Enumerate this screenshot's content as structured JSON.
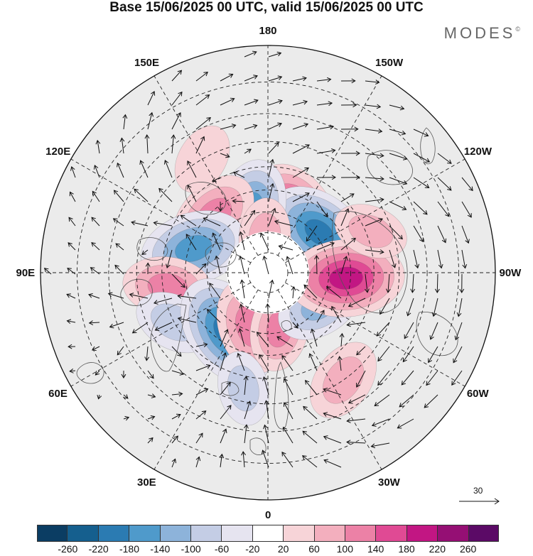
{
  "header": {
    "title": "Base 15/06/2025 00 UTC, valid 15/06/2025 00 UTC",
    "brand": "MODES",
    "brand_mark": "©"
  },
  "map": {
    "projection": "north-polar-stereographic",
    "longitude_labels": [
      {
        "text": "180",
        "lon": 180
      },
      {
        "text": "150E",
        "lon": 150
      },
      {
        "text": "120E",
        "lon": 120
      },
      {
        "text": "90E",
        "lon": 90
      },
      {
        "text": "60E",
        "lon": 60
      },
      {
        "text": "30E",
        "lon": 30
      },
      {
        "text": "0",
        "lon": 0
      },
      {
        "text": "30W",
        "lon": -30
      },
      {
        "text": "60W",
        "lon": -60
      },
      {
        "text": "90W",
        "lon": -90
      },
      {
        "text": "120W",
        "lon": -120
      },
      {
        "text": "150W",
        "lon": -150
      }
    ],
    "vector_reference": "30",
    "anomaly_cells": [
      {
        "lon": -152,
        "lat": 60,
        "value": 200
      },
      {
        "lon": -128,
        "lat": 58,
        "value": -190
      },
      {
        "lon": 165,
        "lat": 58,
        "value": -150
      },
      {
        "lon": 136,
        "lat": 52,
        "value": 130
      },
      {
        "lon": 108,
        "lat": 52,
        "value": -170
      },
      {
        "lon": 82,
        "lat": 42,
        "value": 110
      },
      {
        "lon": 62,
        "lat": 40,
        "value": -80
      },
      {
        "lon": 35,
        "lat": 55,
        "value": -200
      },
      {
        "lon": 18,
        "lat": 62,
        "value": 130
      },
      {
        "lon": -12,
        "lat": 62,
        "value": 100
      },
      {
        "lon": -58,
        "lat": 60,
        "value": -110
      },
      {
        "lon": -86,
        "lat": 52,
        "value": 200
      },
      {
        "lon": -35,
        "lat": 30,
        "value": 90
      },
      {
        "lon": 175,
        "lat": 72,
        "value": 70
      },
      {
        "lon": 12,
        "lat": 35,
        "value": -60
      },
      {
        "lon": -112,
        "lat": 38,
        "value": 60
      },
      {
        "lon": 150,
        "lat": 30,
        "value": 50
      }
    ]
  },
  "legend": {
    "colors": [
      "#0b3d63",
      "#155f8e",
      "#2b7bb2",
      "#4f9acb",
      "#8db3da",
      "#c4cde5",
      "#e6e4f0",
      "#ffffff",
      "#f7d4d8",
      "#f3afbe",
      "#ec81a6",
      "#e04a94",
      "#c21683",
      "#950f74",
      "#5b0a66"
    ],
    "tick_labels": [
      "-260",
      "-220",
      "-180",
      "-140",
      "-100",
      "-60",
      "-20",
      "20",
      "60",
      "100",
      "140",
      "180",
      "220",
      "260"
    ]
  }
}
